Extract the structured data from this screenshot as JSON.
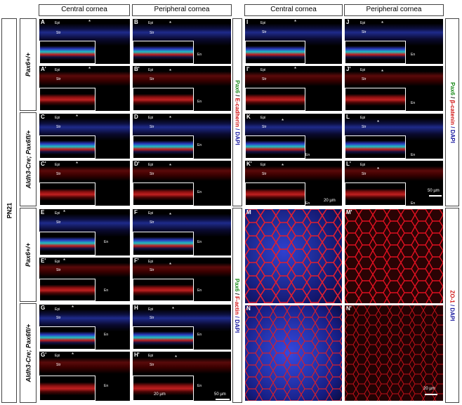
{
  "headers": {
    "central": "Central cornea",
    "peripheral": "Peripheral cornea"
  },
  "age": "PN21",
  "genotypes": {
    "top1": "Pax6+/+",
    "top2": "Aldh3-Cre; Pax6fl/+",
    "bot1": "Pax6+/+",
    "bot2": "Aldh3-Cre; Pax6fl/+"
  },
  "stains": {
    "ecad": [
      "Pax6",
      " / ",
      "E-cadherin",
      " / DAPI"
    ],
    "actin": [
      "Pax6",
      " / ",
      "F-actin",
      " / DAPI"
    ],
    "bcat": [
      "Pax6",
      " / ",
      "β-catenin",
      " / DAPI"
    ],
    "zo1": [
      "ZO-1",
      " / DAPI"
    ]
  },
  "colors": {
    "green": "#1a8a1a",
    "red": "#d01010",
    "blue": "#1a1aa0"
  },
  "layers": {
    "epi": "Epi",
    "str": "Str",
    "en": "En"
  },
  "star": "*",
  "scales": {
    "um20": "20 µm",
    "um50": "50 µm"
  },
  "panels": {
    "A": "A",
    "B": "B",
    "A2": "A'",
    "B2": "B'",
    "C": "C",
    "D": "D",
    "C2": "C'",
    "D2": "D'",
    "E": "E",
    "F": "F",
    "E2": "E'",
    "F2": "F'",
    "G": "G",
    "H": "H",
    "G2": "G'",
    "H2": "H'",
    "I": "I",
    "J": "J",
    "I2": "I'",
    "J2": "J'",
    "K": "K",
    "L": "L",
    "K2": "K'",
    "L2": "L'",
    "M": "M",
    "M2": "M'",
    "N": "N",
    "N2": "N'"
  }
}
